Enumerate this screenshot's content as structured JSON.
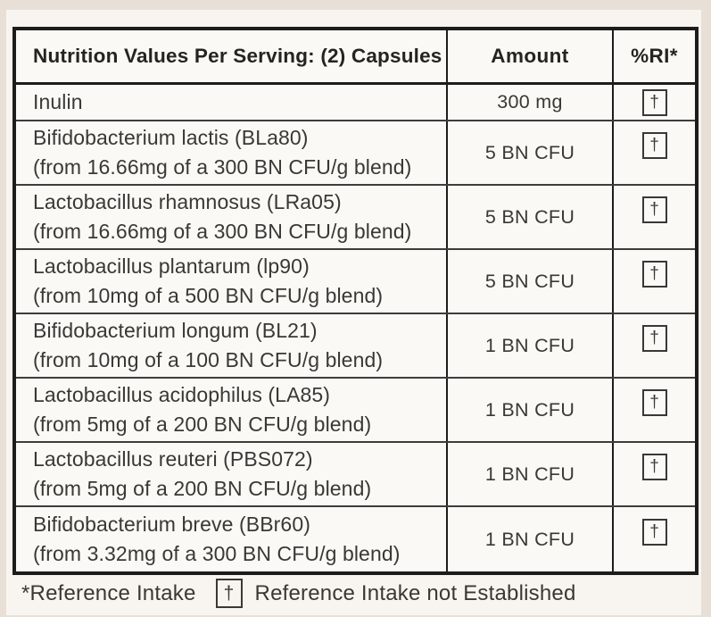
{
  "colors": {
    "label_edge": "#e8e0d7",
    "panel_bg": "#f8f5f0",
    "table_bg": "#fbf9f5",
    "border": "#1d1c1a",
    "text": "#3a3835"
  },
  "table": {
    "header": {
      "col1": "Nutrition Values Per Serving: (2) Capsules",
      "col2": "Amount",
      "col3": "%RI*"
    },
    "rows": [
      {
        "name": "Inulin",
        "detail": "",
        "amount": "300 mg",
        "ri": "†"
      },
      {
        "name": "Bifidobacterium lactis (BLa80)",
        "detail": "(from 16.66mg of a 300 BN CFU/g blend)",
        "amount": "5 BN CFU",
        "ri": "†"
      },
      {
        "name": "Lactobacillus rhamnosus (LRa05)",
        "detail": "(from 16.66mg of a 300 BN CFU/g blend)",
        "amount": "5 BN CFU",
        "ri": "†"
      },
      {
        "name": "Lactobacillus plantarum (lp90)",
        "detail": "(from 10mg of a 500 BN CFU/g blend)",
        "amount": "5 BN CFU",
        "ri": "†"
      },
      {
        "name": "Bifidobacterium longum (BL21)",
        "detail": "(from 10mg of a 100 BN CFU/g blend)",
        "amount": "1 BN CFU",
        "ri": "†"
      },
      {
        "name": "Lactobacillus acidophilus (LA85)",
        "detail": "(from 5mg of a 200 BN CFU/g blend)",
        "amount": "1 BN CFU",
        "ri": "†"
      },
      {
        "name": "Lactobacillus reuteri (PBS072)",
        "detail": "(from 5mg of a 200 BN CFU/g blend)",
        "amount": "1 BN CFU",
        "ri": "†"
      },
      {
        "name": "Bifidobacterium breve (BBr60)",
        "detail": "(from 3.32mg of a 300 BN CFU/g blend)",
        "amount": "1 BN CFU",
        "ri": "†"
      }
    ],
    "footnote": {
      "reference_intake": "*Reference Intake",
      "dagger": "†",
      "not_established": "Reference Intake not Established"
    }
  }
}
